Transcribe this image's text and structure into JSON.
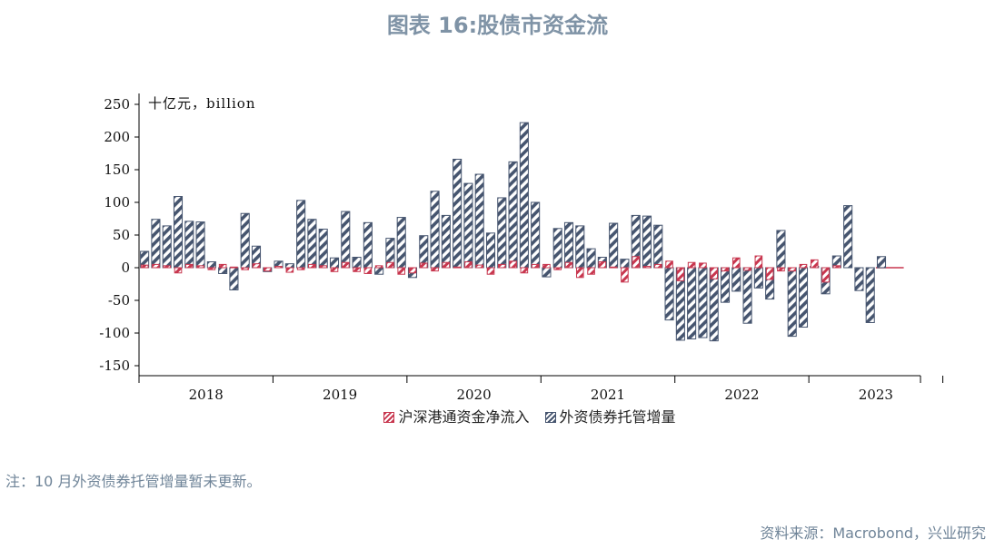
{
  "title": "图表 16:股债市资金流",
  "note": "注：10 月外资债券托管增量暂未更新。",
  "source": "资料来源：Macrobond，兴业研究",
  "colors": {
    "south_north": "#c8374f",
    "bond": "#46556f",
    "title": "#7f93a6"
  },
  "chart_data": {
    "type": "bar",
    "unit_label": "十亿元，billion",
    "xlabel": "",
    "ylabel": "",
    "ylim": [
      -165,
      255
    ],
    "yticks": [
      250,
      200,
      150,
      100,
      50,
      0,
      -50,
      -100,
      -150
    ],
    "years": [
      "2018",
      "2019",
      "2020",
      "2021",
      "2022",
      "2023"
    ],
    "legend_position": "bottom",
    "grid": false,
    "months_start": "2018-01",
    "series": [
      {
        "name": "沪深港通资金净流入",
        "values": [
          4,
          5,
          3,
          -8,
          5,
          3,
          -3,
          5,
          1,
          -3,
          6,
          -5,
          2,
          -7,
          -3,
          5,
          3,
          -6,
          8,
          -6,
          -9,
          3,
          8,
          -10,
          -8,
          7,
          -5,
          8,
          1,
          9,
          4,
          -10,
          5,
          10,
          -8,
          5,
          5,
          -3,
          8,
          -15,
          -10,
          9,
          1,
          -22,
          17,
          2,
          5,
          10,
          -20,
          8,
          7,
          -17,
          -5,
          15,
          -4,
          18,
          -18,
          -5,
          -5,
          5,
          12,
          -22,
          3
        ]
      },
      {
        "name": "外资债券托管增量",
        "values": [
          25,
          74,
          64,
          109,
          71,
          70,
          9,
          -9,
          -34,
          83,
          33,
          -6,
          10,
          6,
          103,
          74,
          59,
          15,
          86,
          16,
          69,
          -10,
          45,
          77,
          -15,
          49,
          117,
          80,
          166,
          129,
          143,
          53,
          107,
          162,
          222,
          100,
          -14,
          60,
          69,
          64,
          29,
          16,
          68,
          13,
          80,
          79,
          65,
          -80,
          -111,
          -109,
          -107,
          -112,
          -53,
          -36,
          -85,
          -31,
          -48,
          57,
          -105,
          -91,
          2,
          -40,
          18,
          95,
          -35,
          -84,
          17
        ]
      }
    ]
  }
}
